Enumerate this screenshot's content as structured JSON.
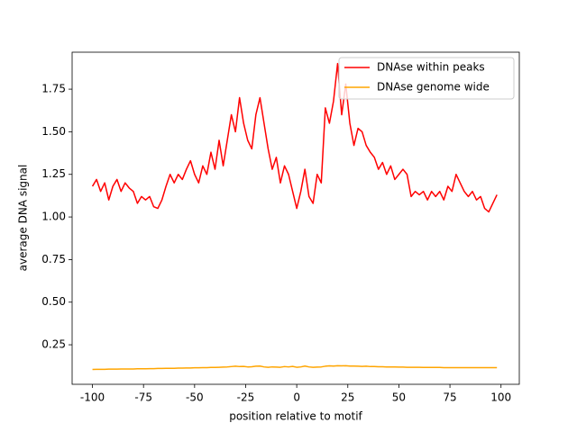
{
  "chart_data": {
    "type": "line",
    "xlabel": "position relative to motif",
    "ylabel": "average DNA signal",
    "x": [
      -100,
      -98,
      -96,
      -94,
      -92,
      -90,
      -88,
      -86,
      -84,
      -82,
      -80,
      -78,
      -76,
      -74,
      -72,
      -70,
      -68,
      -66,
      -64,
      -62,
      -60,
      -58,
      -56,
      -54,
      -52,
      -50,
      -48,
      -46,
      -44,
      -42,
      -40,
      -38,
      -36,
      -34,
      -32,
      -30,
      -28,
      -26,
      -24,
      -22,
      -20,
      -18,
      -16,
      -14,
      -12,
      -10,
      -8,
      -6,
      -4,
      -2,
      0,
      2,
      4,
      6,
      8,
      10,
      12,
      14,
      16,
      18,
      20,
      22,
      24,
      26,
      28,
      30,
      32,
      34,
      36,
      38,
      40,
      42,
      44,
      46,
      48,
      50,
      52,
      54,
      56,
      58,
      60,
      62,
      64,
      66,
      68,
      70,
      72,
      74,
      76,
      78,
      80,
      82,
      84,
      86,
      88,
      90,
      92,
      94,
      96,
      98
    ],
    "series": [
      {
        "name": "DNAse within peaks",
        "color": "#ff0000",
        "values": [
          1.18,
          1.22,
          1.15,
          1.2,
          1.1,
          1.18,
          1.22,
          1.15,
          1.2,
          1.17,
          1.15,
          1.08,
          1.12,
          1.1,
          1.12,
          1.06,
          1.05,
          1.1,
          1.18,
          1.25,
          1.2,
          1.25,
          1.22,
          1.28,
          1.33,
          1.25,
          1.2,
          1.3,
          1.25,
          1.38,
          1.28,
          1.45,
          1.3,
          1.45,
          1.6,
          1.5,
          1.7,
          1.55,
          1.45,
          1.4,
          1.6,
          1.7,
          1.55,
          1.4,
          1.28,
          1.35,
          1.2,
          1.3,
          1.25,
          1.15,
          1.05,
          1.15,
          1.28,
          1.12,
          1.08,
          1.25,
          1.2,
          1.64,
          1.55,
          1.68,
          1.9,
          1.6,
          1.78,
          1.55,
          1.42,
          1.52,
          1.5,
          1.42,
          1.38,
          1.35,
          1.28,
          1.32,
          1.25,
          1.3,
          1.22,
          1.25,
          1.28,
          1.25,
          1.12,
          1.15,
          1.13,
          1.15,
          1.1,
          1.15,
          1.12,
          1.15,
          1.1,
          1.18,
          1.15,
          1.25,
          1.2,
          1.15,
          1.12,
          1.15,
          1.1,
          1.12,
          1.05,
          1.03,
          1.08,
          1.13
        ]
      },
      {
        "name": "DNAse genome wide",
        "color": "#ffa500",
        "values": [
          0.105,
          0.106,
          0.106,
          0.106,
          0.107,
          0.107,
          0.107,
          0.108,
          0.108,
          0.108,
          0.108,
          0.109,
          0.109,
          0.109,
          0.11,
          0.11,
          0.111,
          0.111,
          0.112,
          0.112,
          0.112,
          0.113,
          0.113,
          0.114,
          0.114,
          0.115,
          0.115,
          0.116,
          0.116,
          0.117,
          0.117,
          0.118,
          0.119,
          0.12,
          0.122,
          0.124,
          0.122,
          0.123,
          0.12,
          0.121,
          0.124,
          0.125,
          0.12,
          0.118,
          0.12,
          0.119,
          0.118,
          0.122,
          0.12,
          0.123,
          0.118,
          0.12,
          0.125,
          0.12,
          0.118,
          0.119,
          0.12,
          0.124,
          0.126,
          0.125,
          0.127,
          0.126,
          0.127,
          0.125,
          0.125,
          0.124,
          0.123,
          0.124,
          0.122,
          0.122,
          0.121,
          0.121,
          0.12,
          0.12,
          0.12,
          0.119,
          0.119,
          0.118,
          0.118,
          0.118,
          0.118,
          0.117,
          0.117,
          0.117,
          0.117,
          0.117,
          0.116,
          0.116,
          0.116,
          0.116,
          0.116,
          0.116,
          0.116,
          0.116,
          0.116,
          0.116,
          0.116,
          0.116,
          0.116,
          0.116
        ]
      }
    ],
    "xlim": [
      -109.95,
      108.95
    ],
    "xticks": [
      -100,
      -75,
      -50,
      -25,
      0,
      25,
      50,
      75,
      100
    ],
    "ylim": [
      0.018,
      1.967
    ],
    "yticks": [
      0.25,
      {
        "value": 0.5,
        "label": "0.50"
      },
      0.75,
      {
        "value": 1,
        "label": "1.00"
      },
      1.25,
      {
        "value": 1.5,
        "label": "1.50"
      },
      1.75
    ],
    "legend": "upper right",
    "grid": false
  }
}
